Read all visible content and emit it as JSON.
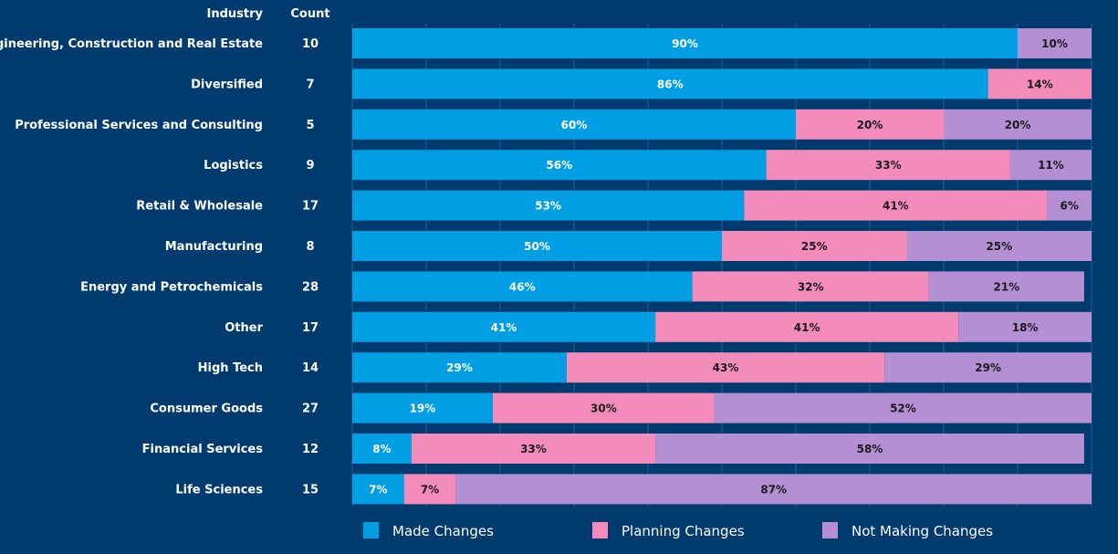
{
  "headers": {
    "industry": "Industry",
    "count": "Count"
  },
  "colors": {
    "background": "#003b6f",
    "made": "#009fe3",
    "planning": "#f38cbb",
    "not_making": "#b48fd4",
    "grid": "#2a5d8f"
  },
  "chart_data": {
    "type": "bar",
    "orientation": "horizontal",
    "stacked": true,
    "xlim": [
      0,
      100
    ],
    "grid": true,
    "legend": "bottom",
    "categories": [
      "Engineering, Construction and Real Estate",
      "Diversified",
      "Professional Services and Consulting",
      "Logistics",
      "Retail & Wholesale",
      "Manufacturing",
      "Energy and Petrochemicals",
      "Other",
      "High Tech",
      "Consumer Goods",
      "Financial Services",
      "Life Sciences"
    ],
    "counts": [
      10,
      7,
      5,
      9,
      17,
      8,
      28,
      17,
      14,
      27,
      12,
      15
    ],
    "series": [
      {
        "name": "Made Changes",
        "values": [
          90,
          86,
          60,
          56,
          53,
          50,
          46,
          41,
          29,
          19,
          8,
          7
        ]
      },
      {
        "name": "Planning Changes",
        "values": [
          0,
          14,
          20,
          33,
          41,
          25,
          32,
          41,
          43,
          30,
          33,
          7
        ]
      },
      {
        "name": "Not Making Changes",
        "values": [
          10,
          0,
          20,
          11,
          6,
          25,
          21,
          18,
          29,
          52,
          58,
          87
        ]
      }
    ],
    "value_suffix": "%"
  }
}
